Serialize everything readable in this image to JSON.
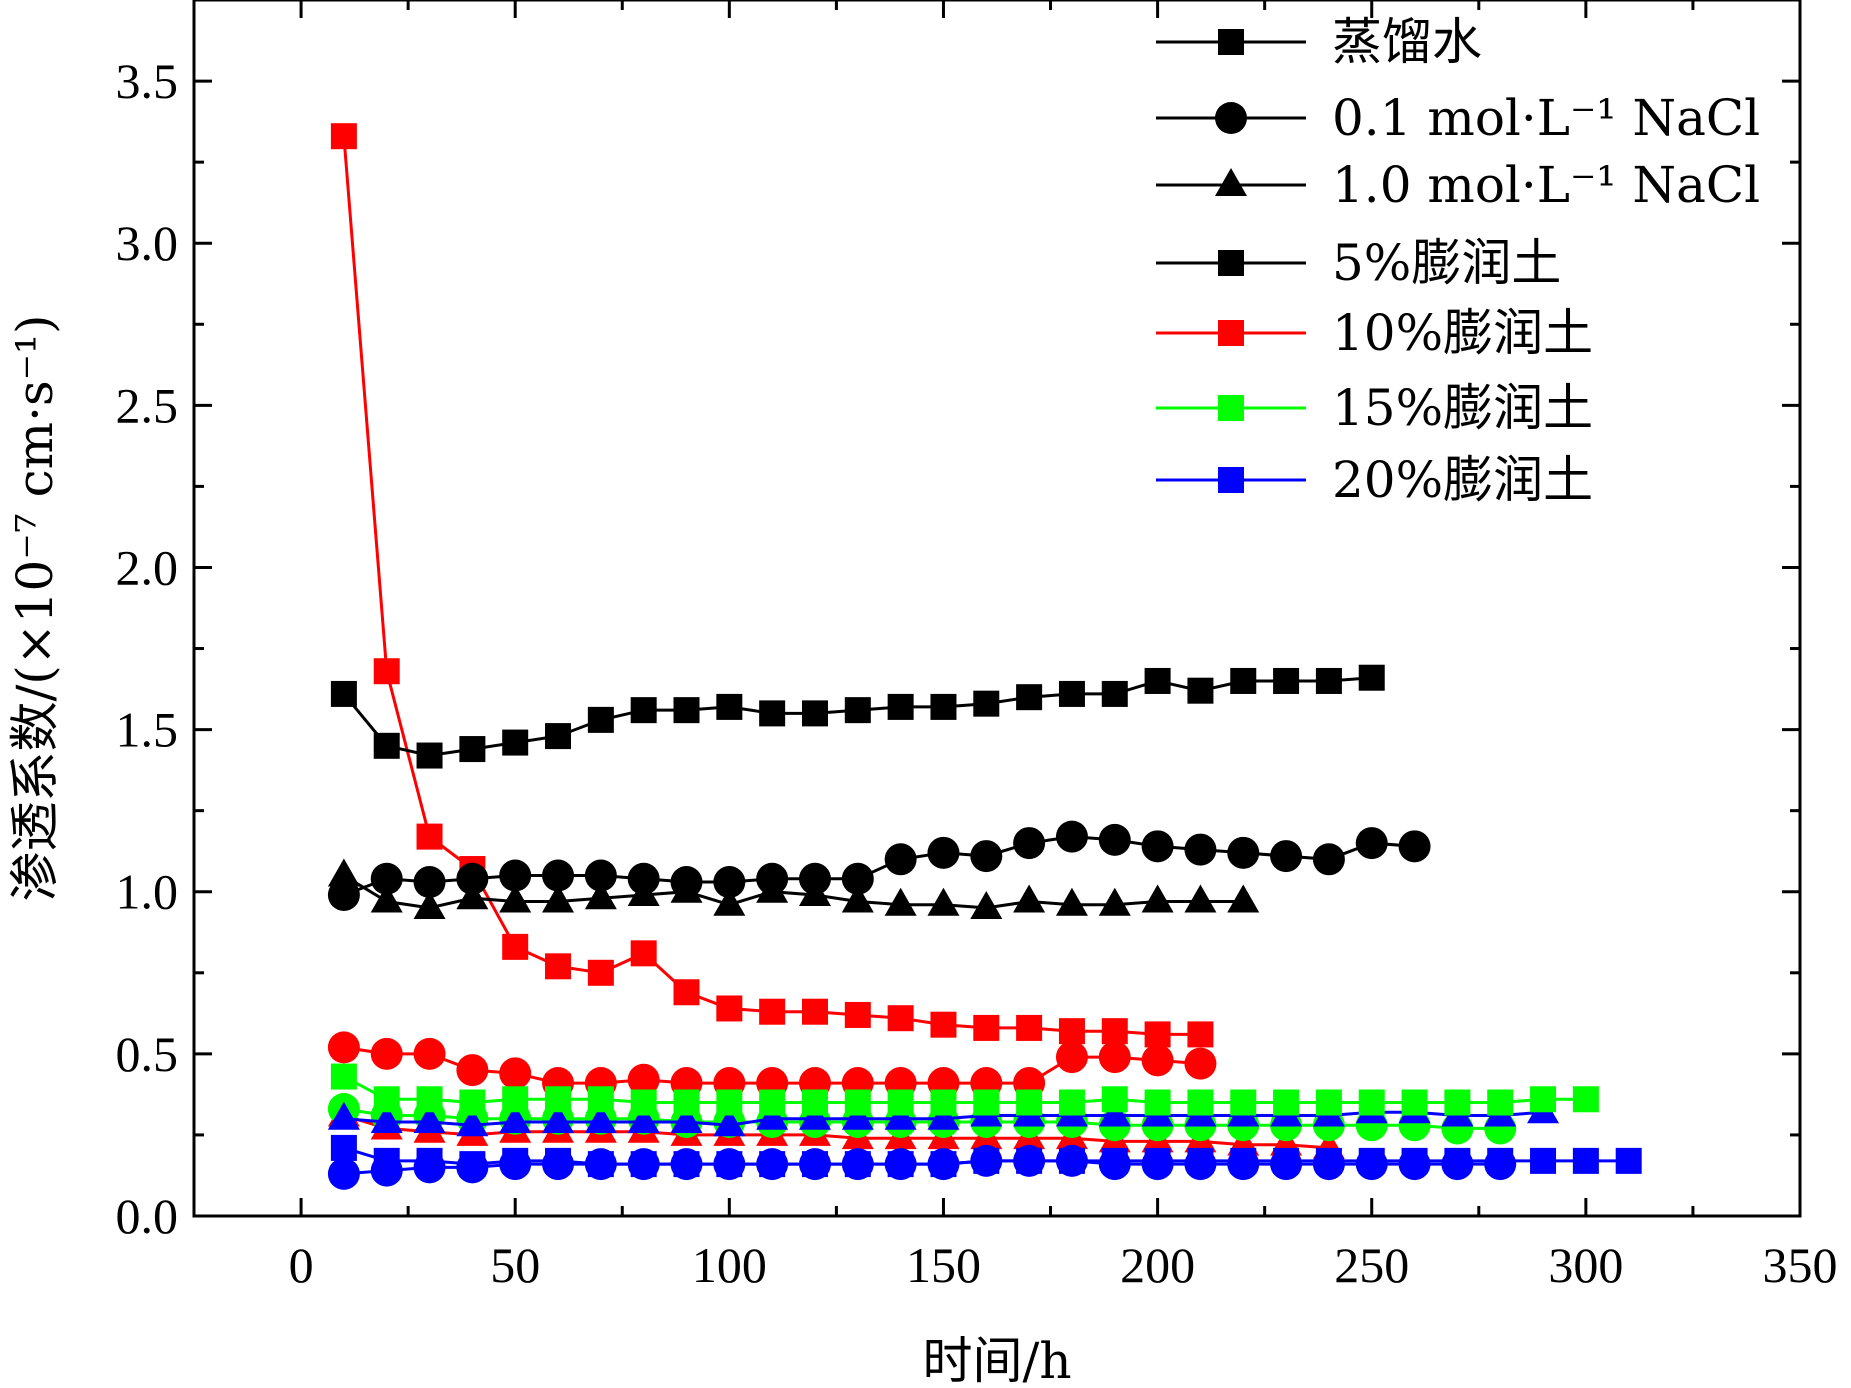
{
  "chart_data": {
    "type": "line",
    "title": "",
    "xlabel": "时间/h",
    "ylabel": "渗透系数/(×10⁻⁷ cm·s⁻¹)",
    "xlim": [
      -25,
      350
    ],
    "ylim": [
      0,
      3.75
    ],
    "x_ticks": [
      "0",
      "50",
      "100",
      "150",
      "200",
      "250",
      "300",
      "350"
    ],
    "y_ticks": [
      "0.0",
      "0.5",
      "1.0",
      "1.5",
      "2.0",
      "2.5",
      "3.0",
      "3.5"
    ],
    "legend_position": "top-right",
    "grid": false,
    "series": [
      {
        "name": "蒸馏水",
        "color": "#000000",
        "marker": "square",
        "x": [
          10,
          20,
          30,
          40,
          50,
          60,
          70,
          80,
          90,
          100,
          110,
          120,
          130,
          140,
          150,
          160,
          170,
          180,
          190,
          200,
          210,
          220,
          230,
          240,
          250
        ],
        "y": [
          1.61,
          1.45,
          1.42,
          1.44,
          1.46,
          1.48,
          1.53,
          1.56,
          1.56,
          1.57,
          1.55,
          1.55,
          1.56,
          1.57,
          1.57,
          1.58,
          1.6,
          1.61,
          1.61,
          1.65,
          1.62,
          1.65,
          1.65,
          1.65,
          1.66
        ]
      },
      {
        "name": "0.1 mol·L⁻¹ NaCl",
        "color": "#000000",
        "marker": "circle",
        "x": [
          10,
          20,
          30,
          40,
          50,
          60,
          70,
          80,
          90,
          100,
          110,
          120,
          130,
          140,
          150,
          160,
          170,
          180,
          190,
          200,
          210,
          220,
          230,
          240,
          250,
          260
        ],
        "y": [
          0.99,
          1.04,
          1.03,
          1.04,
          1.05,
          1.05,
          1.05,
          1.04,
          1.03,
          1.03,
          1.04,
          1.04,
          1.04,
          1.1,
          1.12,
          1.11,
          1.15,
          1.17,
          1.16,
          1.14,
          1.13,
          1.12,
          1.11,
          1.1,
          1.15,
          1.14
        ]
      },
      {
        "name": "1.0 mol·L⁻¹ NaCl",
        "color": "#000000",
        "marker": "triangle",
        "x": [
          10,
          20,
          30,
          40,
          50,
          60,
          70,
          80,
          90,
          100,
          110,
          120,
          130,
          140,
          150,
          160,
          170,
          180,
          190,
          200,
          210,
          220
        ],
        "y": [
          1.05,
          0.97,
          0.95,
          0.98,
          0.97,
          0.97,
          0.98,
          0.99,
          1.0,
          0.96,
          1.0,
          0.99,
          0.97,
          0.96,
          0.96,
          0.95,
          0.97,
          0.96,
          0.96,
          0.97,
          0.97,
          0.97
        ]
      },
      {
        "name": "5%膨润土",
        "color": "#000000",
        "marker": "square",
        "x": [],
        "y": []
      },
      {
        "name": "10%膨润土",
        "color": "#ff0000",
        "marker": "square",
        "x": [
          10,
          20,
          30,
          40,
          50,
          60,
          70,
          80,
          90,
          100,
          110,
          120,
          130,
          140,
          150,
          160,
          170,
          180,
          190,
          200,
          210
        ],
        "y": [
          3.33,
          1.68,
          1.17,
          1.07,
          0.83,
          0.77,
          0.75,
          0.81,
          0.69,
          0.64,
          0.63,
          0.63,
          0.62,
          0.61,
          0.59,
          0.58,
          0.58,
          0.57,
          0.57,
          0.56,
          0.56
        ]
      },
      {
        "name": "15%膨润土",
        "color": "#00ff00",
        "marker": "square",
        "x": [
          10,
          20,
          30,
          40,
          50,
          60,
          70,
          80,
          90,
          100,
          110,
          120,
          130,
          140,
          150,
          160,
          170,
          180,
          190,
          200,
          210,
          220,
          230,
          240,
          250,
          260,
          270,
          280,
          290,
          300
        ],
        "y": [
          0.43,
          0.36,
          0.36,
          0.35,
          0.36,
          0.36,
          0.36,
          0.35,
          0.35,
          0.35,
          0.35,
          0.35,
          0.35,
          0.35,
          0.35,
          0.35,
          0.35,
          0.35,
          0.36,
          0.35,
          0.35,
          0.35,
          0.35,
          0.35,
          0.35,
          0.35,
          0.35,
          0.35,
          0.36,
          0.36
        ]
      },
      {
        "name": "20%膨润土",
        "color": "#0000ff",
        "marker": "square",
        "x": [
          10,
          20,
          30,
          40,
          50,
          60,
          70,
          80,
          90,
          100,
          110,
          120,
          130,
          140,
          150,
          160,
          170,
          180,
          190,
          200,
          210,
          220,
          230,
          240,
          250,
          260,
          270,
          280,
          290,
          300,
          310
        ],
        "y": [
          0.21,
          0.17,
          0.17,
          0.16,
          0.17,
          0.17,
          0.16,
          0.16,
          0.16,
          0.16,
          0.16,
          0.16,
          0.16,
          0.16,
          0.16,
          0.17,
          0.17,
          0.17,
          0.17,
          0.17,
          0.17,
          0.17,
          0.17,
          0.17,
          0.17,
          0.17,
          0.17,
          0.17,
          0.17,
          0.17,
          0.17
        ]
      }
    ],
    "extra_series": [
      {
        "color": "#ff0000",
        "marker": "circle",
        "x": [
          10,
          20,
          30,
          40,
          50,
          60,
          70,
          80,
          90,
          100,
          110,
          120,
          130,
          140,
          150,
          160,
          170,
          180,
          190,
          200,
          210
        ],
        "y": [
          0.52,
          0.5,
          0.5,
          0.45,
          0.44,
          0.41,
          0.41,
          0.42,
          0.41,
          0.41,
          0.41,
          0.41,
          0.41,
          0.41,
          0.41,
          0.41,
          0.41,
          0.49,
          0.49,
          0.48,
          0.47
        ]
      },
      {
        "color": "#ff0000",
        "marker": "triangle",
        "x": [
          10,
          20,
          30,
          40,
          50,
          60,
          70,
          80,
          90,
          100,
          110,
          120,
          130,
          140,
          150,
          160,
          170,
          180,
          190,
          200,
          210,
          220,
          230,
          240
        ],
        "y": [
          0.31,
          0.27,
          0.26,
          0.25,
          0.26,
          0.26,
          0.26,
          0.26,
          0.25,
          0.25,
          0.25,
          0.25,
          0.24,
          0.24,
          0.24,
          0.24,
          0.24,
          0.24,
          0.23,
          0.23,
          0.23,
          0.22,
          0.22,
          0.21
        ]
      },
      {
        "color": "#00ff00",
        "marker": "circle",
        "x": [
          10,
          20,
          30,
          40,
          50,
          60,
          70,
          80,
          90,
          100,
          110,
          120,
          130,
          140,
          150,
          160,
          170,
          180,
          190,
          200,
          210,
          220,
          230,
          240,
          250,
          260,
          270,
          280
        ],
        "y": [
          0.33,
          0.31,
          0.31,
          0.3,
          0.3,
          0.3,
          0.3,
          0.3,
          0.29,
          0.29,
          0.29,
          0.29,
          0.29,
          0.29,
          0.29,
          0.29,
          0.29,
          0.29,
          0.28,
          0.28,
          0.28,
          0.28,
          0.28,
          0.28,
          0.28,
          0.28,
          0.27,
          0.27
        ]
      },
      {
        "color": "#0000ff",
        "marker": "triangle",
        "x": [
          10,
          20,
          30,
          40,
          50,
          60,
          70,
          80,
          90,
          100,
          110,
          120,
          130,
          140,
          150,
          160,
          170,
          180,
          190,
          200,
          210,
          220,
          230,
          240,
          250,
          260,
          270,
          280,
          290
        ],
        "y": [
          0.3,
          0.29,
          0.29,
          0.28,
          0.29,
          0.29,
          0.29,
          0.29,
          0.29,
          0.28,
          0.3,
          0.3,
          0.3,
          0.3,
          0.3,
          0.31,
          0.31,
          0.31,
          0.31,
          0.31,
          0.31,
          0.31,
          0.31,
          0.31,
          0.32,
          0.32,
          0.31,
          0.31,
          0.32
        ]
      },
      {
        "color": "#0000ff",
        "marker": "circle",
        "x": [
          10,
          20,
          30,
          40,
          50,
          60,
          70,
          80,
          90,
          100,
          110,
          120,
          130,
          140,
          150,
          160,
          170,
          180,
          190,
          200,
          210,
          220,
          230,
          240,
          250,
          260,
          270,
          280
        ],
        "y": [
          0.13,
          0.14,
          0.15,
          0.15,
          0.16,
          0.16,
          0.16,
          0.16,
          0.16,
          0.16,
          0.16,
          0.16,
          0.16,
          0.16,
          0.16,
          0.17,
          0.17,
          0.17,
          0.16,
          0.16,
          0.16,
          0.16,
          0.16,
          0.16,
          0.16,
          0.16,
          0.16,
          0.16
        ]
      }
    ]
  }
}
